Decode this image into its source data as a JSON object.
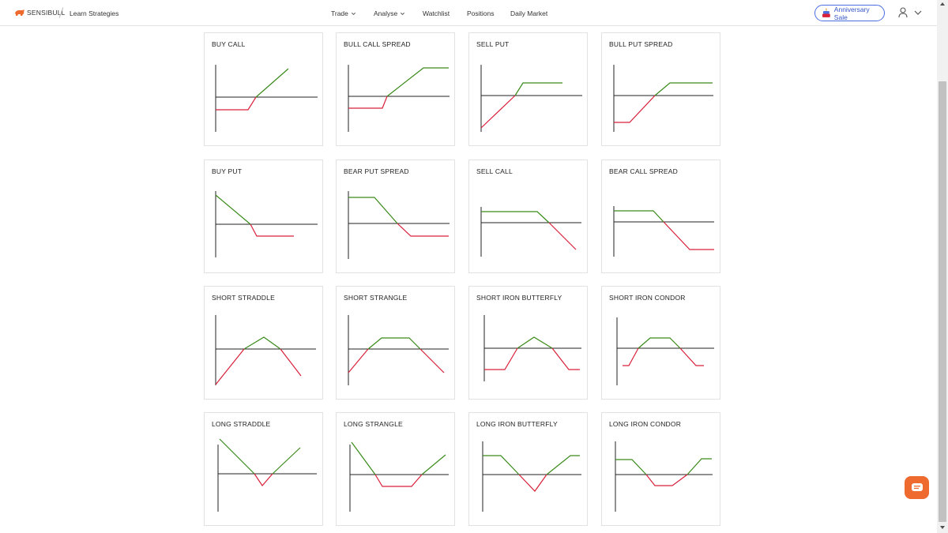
{
  "header": {
    "brand": "SENSIBULL",
    "breadcrumb": "Learn Strategies",
    "nav": [
      {
        "label": "Trade",
        "dropdown": true
      },
      {
        "label": "Analyse",
        "dropdown": true
      },
      {
        "label": "Watchlist",
        "dropdown": false
      },
      {
        "label": "Positions",
        "dropdown": false
      },
      {
        "label": "Daily Market",
        "dropdown": false
      }
    ],
    "sale_label": "Anniversary Sale",
    "user_icon": "user-icon"
  },
  "colors": {
    "profit": "#3a8a1a",
    "loss": "#d8203a",
    "axis": "#222222",
    "brand": "#ee6a2f",
    "accent": "#3556c8"
  },
  "strategies": [
    {
      "title": "BUY CALL"
    },
    {
      "title": "BULL CALL SPREAD"
    },
    {
      "title": "SELL PUT"
    },
    {
      "title": "BULL PUT SPREAD"
    },
    {
      "title": "BUY PUT"
    },
    {
      "title": "BEAR PUT SPREAD"
    },
    {
      "title": "SELL CALL"
    },
    {
      "title": "BEAR CALL SPREAD"
    },
    {
      "title": "SHORT STRADDLE"
    },
    {
      "title": "SHORT STRANGLE"
    },
    {
      "title": "SHORT IRON BUTTERFLY"
    },
    {
      "title": "SHORT IRON CONDOR"
    },
    {
      "title": "LONG STRADDLE"
    },
    {
      "title": "LONG STRANGLE"
    },
    {
      "title": "LONG IRON BUTTERFLY"
    },
    {
      "title": "LONG IRON CONDOR"
    }
  ]
}
